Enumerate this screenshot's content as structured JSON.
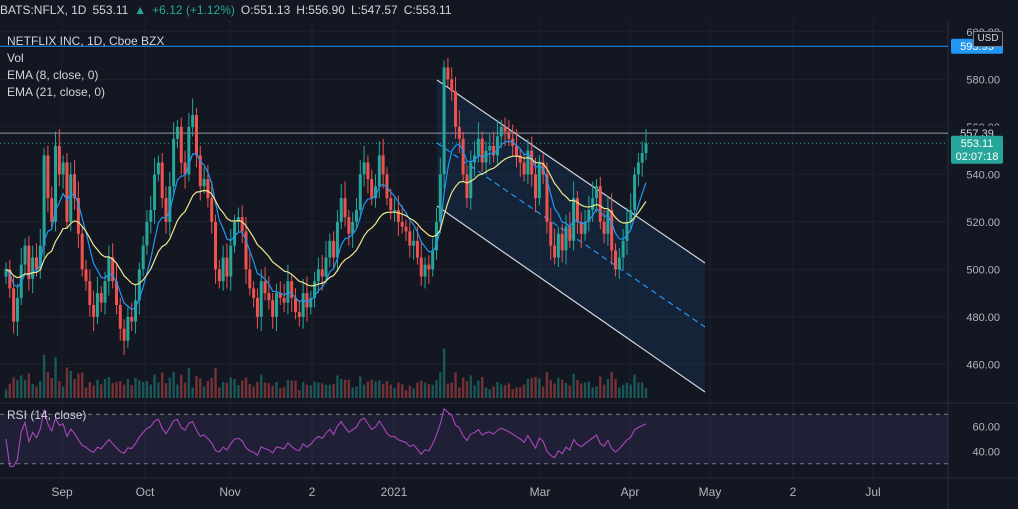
{
  "header": {
    "symbol": "BATS:NFLX, 1D",
    "last": "553.11",
    "change": "+6.12 (+1.12%)",
    "open": "O:551.13",
    "high": "H:556.90",
    "low": "L:547.57",
    "close": "C:553.11"
  },
  "legend": {
    "title": "NETFLIX INC, 1D, Cboe BZX",
    "vol": "Vol",
    "ema8": "EMA (8, close, 0)",
    "ema21": "EMA (21, close, 0)"
  },
  "rsi_label": "RSI (14, close)",
  "currency": "USD",
  "colors": {
    "up": "#26a69a",
    "down": "#ef5350",
    "ema8": "#2196f3",
    "ema21": "#f0e68c",
    "rsi": "#ab47bc",
    "hline": "#2196f3"
  },
  "price_axis": [
    "600.00",
    "580.00",
    "560.00",
    "540.00",
    "520.00",
    "500.00",
    "480.00",
    "460.00"
  ],
  "rsi_axis": [
    "60.00",
    "40.00"
  ],
  "tags": {
    "level_593": "593.95",
    "level_557": "557.39",
    "last": "553.11",
    "countdown": "02:07:18"
  },
  "time_axis": [
    "Sep",
    "Oct",
    "Nov",
    "2",
    "2021",
    "Mar",
    "Apr",
    "May",
    "2",
    "Jul"
  ],
  "chart_data": {
    "type": "candlestick",
    "symbol": "NFLX",
    "ylim": [
      445,
      605
    ],
    "horizontal_lines": [
      593.95,
      557.39
    ],
    "last_price": 553.11,
    "closes": [
      500,
      492,
      478,
      488,
      502,
      510,
      496,
      505,
      500,
      510,
      548,
      530,
      520,
      552,
      540,
      545,
      520,
      540,
      530,
      515,
      500,
      495,
      485,
      480,
      490,
      486,
      495,
      505,
      495,
      485,
      475,
      470,
      480,
      478,
      487,
      500,
      510,
      520,
      525,
      540,
      545,
      530,
      520,
      535,
      555,
      560,
      545,
      540,
      560,
      565,
      548,
      535,
      538,
      530,
      520,
      500,
      495,
      505,
      497,
      510,
      520,
      522,
      516,
      500,
      492,
      488,
      480,
      495,
      490,
      487,
      480,
      490,
      488,
      486,
      495,
      488,
      482,
      480,
      490,
      484,
      488,
      495,
      500,
      497,
      505,
      512,
      505,
      520,
      530,
      522,
      515,
      520,
      525,
      540,
      545,
      538,
      530,
      535,
      548,
      540,
      530,
      525,
      525,
      520,
      518,
      516,
      510,
      512,
      505,
      497,
      502,
      500,
      508,
      520,
      540,
      585,
      580,
      575,
      560,
      555,
      540,
      530,
      545,
      548,
      555,
      545,
      550,
      552,
      548,
      556,
      560,
      558,
      555,
      552,
      548,
      545,
      540,
      550,
      540,
      530,
      545,
      540,
      520,
      510,
      505,
      515,
      508,
      518,
      512,
      530,
      520,
      515,
      520,
      525,
      530,
      535,
      520,
      515,
      525,
      508,
      500,
      505,
      512,
      520,
      525,
      540,
      545,
      549,
      553
    ]
  }
}
